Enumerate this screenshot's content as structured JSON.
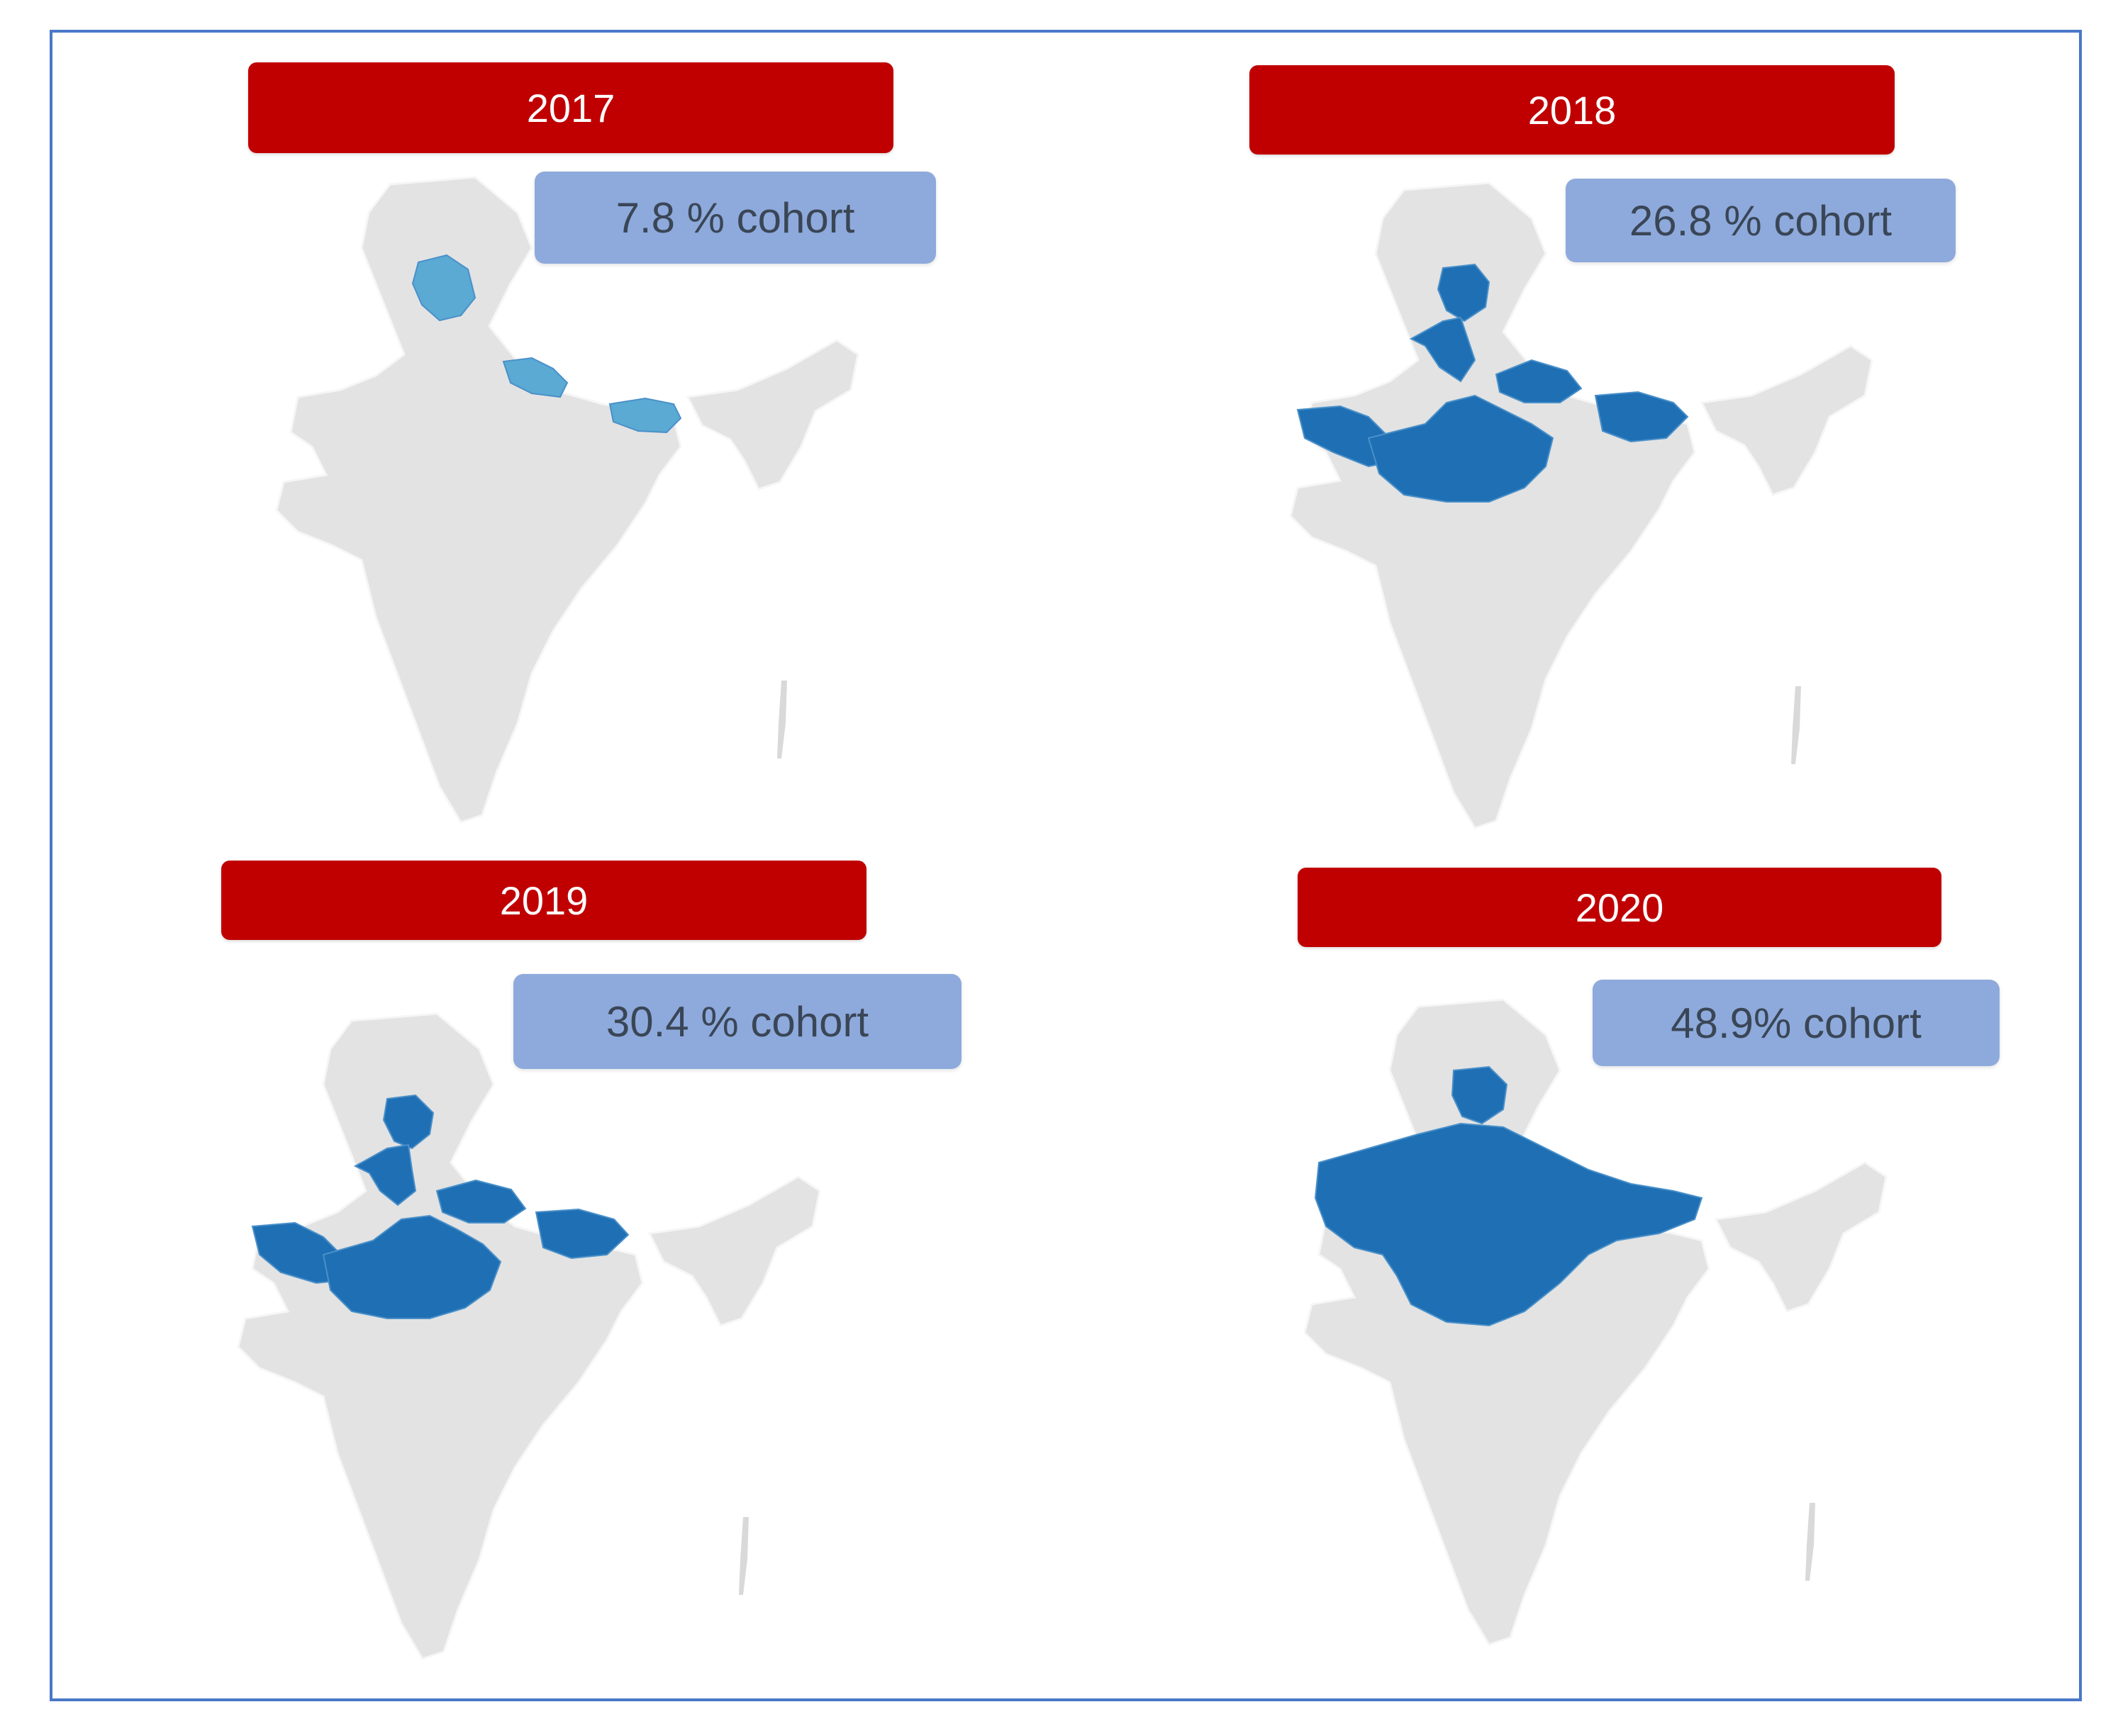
{
  "panels": [
    {
      "year": "2017",
      "cohort": "7.8 % cohort",
      "highlight_color": "#5aaad4",
      "highlight_regions": [
        "north-hills",
        "western-plain-strip",
        "eastern-plain-strip"
      ]
    },
    {
      "year": "2018",
      "cohort": "26.8 % cohort",
      "highlight_color": "#1f6fb4",
      "highlight_regions": [
        "north-hills",
        "north-corridor",
        "west-coast-arm",
        "central-belt",
        "northern-plain",
        "eastern-plain"
      ]
    },
    {
      "year": "2019",
      "cohort": "30.4 % cohort",
      "highlight_color": "#1f6fb4",
      "highlight_regions": [
        "north-hills",
        "north-corridor",
        "west-coast-arm",
        "central-belt",
        "northern-plain",
        "eastern-plain"
      ]
    },
    {
      "year": "2020",
      "cohort": "48.9% cohort",
      "highlight_color": "#1f6fb4",
      "highlight_regions": [
        "north-hills",
        "northern-band"
      ]
    }
  ],
  "map_base_color": "#e3e3e3",
  "banner_color": "#c00000",
  "cohort_box_color": "#8eaadc",
  "frame_color": "#4a78c8"
}
